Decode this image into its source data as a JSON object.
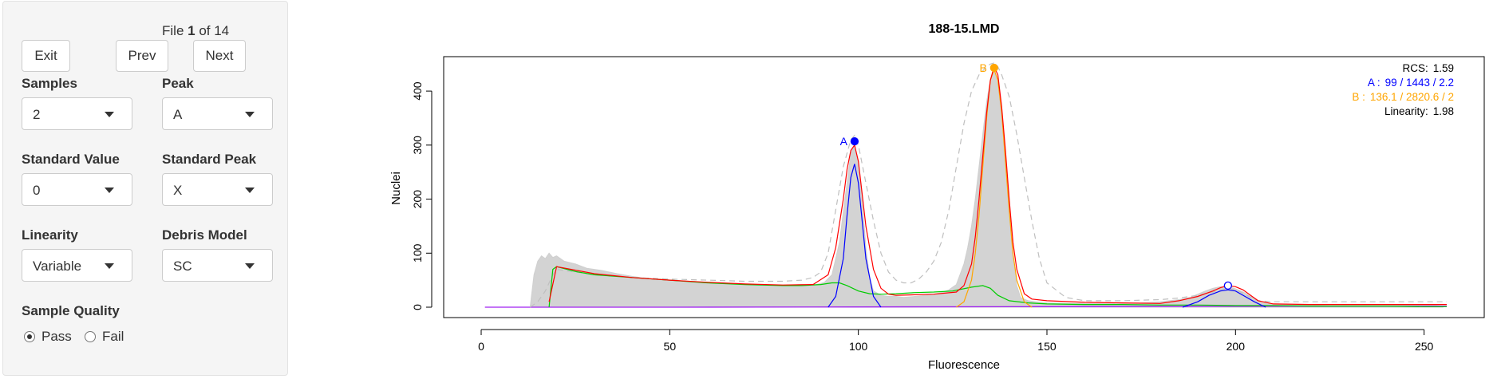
{
  "sidebar": {
    "file_counter": {
      "prefix": "File ",
      "current": "1",
      "suffix": " of 14"
    },
    "buttons": {
      "exit": "Exit",
      "prev": "Prev",
      "next": "Next"
    },
    "samples": {
      "label": "Samples",
      "value": "2"
    },
    "peak": {
      "label": "Peak",
      "value": "A"
    },
    "standard_value": {
      "label": "Standard Value",
      "value": "0"
    },
    "standard_peak": {
      "label": "Standard Peak",
      "value": "X"
    },
    "linearity": {
      "label": "Linearity",
      "value": "Variable"
    },
    "debris_model": {
      "label": "Debris Model",
      "value": "SC"
    },
    "sample_quality": {
      "label": "Sample Quality",
      "options": [
        "Pass",
        "Fail"
      ],
      "selected": "Pass"
    }
  },
  "chart_data": {
    "type": "area",
    "title": "188-15.LMD",
    "xlabel": "Fluorescence",
    "ylabel": "Nuclei",
    "xlim": [
      0,
      256
    ],
    "ylim": [
      0,
      440
    ],
    "xticks": [
      0,
      50,
      100,
      150,
      200,
      250
    ],
    "yticks": [
      0,
      100,
      200,
      300,
      400
    ],
    "grid": false,
    "peak_markers": [
      {
        "label": "A",
        "x": 99,
        "y": 307,
        "color": "#0000ff",
        "filled": true
      },
      {
        "label": "B",
        "x": 136,
        "y": 443,
        "color": "#ffa500",
        "filled": true
      },
      {
        "label": "",
        "x": 198,
        "y": 40,
        "color": "#0000ff",
        "filled": false
      }
    ],
    "stats": {
      "rcs": {
        "label": "RCS:",
        "value": "1.59"
      },
      "a": {
        "label": "A :",
        "value": "99 / 1443 / 2.2",
        "color": "#0000ff"
      },
      "b": {
        "label": "B :",
        "value": "136.1 / 2820.6 / 2",
        "color": "#ffa500"
      },
      "linearity": {
        "label": "Linearity:",
        "value": "1.98"
      }
    },
    "histogram": {
      "x": [
        13,
        14,
        15,
        16,
        17,
        18,
        19,
        20,
        22,
        25,
        28,
        32,
        36,
        40,
        45,
        50,
        55,
        60,
        65,
        70,
        75,
        80,
        85,
        88,
        91,
        93,
        95,
        97,
        98,
        99,
        100,
        101,
        102,
        103,
        104,
        106,
        108,
        110,
        112,
        115,
        118,
        120,
        122,
        124,
        126,
        128,
        129,
        130,
        131,
        132,
        133,
        134,
        135,
        136,
        137,
        138,
        139,
        140,
        141,
        142,
        143,
        145,
        147,
        150,
        155,
        160,
        165,
        170,
        175,
        180,
        185,
        188,
        190,
        192,
        194,
        196,
        198,
        200,
        202,
        204,
        206,
        210,
        215,
        220,
        225,
        230,
        235,
        240,
        245,
        250,
        253,
        255
      ],
      "y": [
        0,
        60,
        85,
        95,
        90,
        100,
        92,
        95,
        85,
        80,
        72,
        68,
        62,
        57,
        52,
        50,
        48,
        46,
        44,
        42,
        41,
        40,
        42,
        40,
        46,
        60,
        120,
        230,
        285,
        300,
        270,
        200,
        110,
        55,
        30,
        22,
        20,
        20,
        18,
        20,
        22,
        24,
        27,
        32,
        42,
        80,
        110,
        150,
        200,
        260,
        320,
        380,
        420,
        440,
        410,
        350,
        260,
        170,
        90,
        40,
        18,
        12,
        10,
        8,
        7,
        7,
        7,
        7,
        8,
        10,
        14,
        18,
        24,
        30,
        35,
        38,
        38,
        34,
        28,
        20,
        12,
        6,
        4,
        4,
        3,
        3,
        3,
        3,
        3,
        3,
        3,
        2
      ]
    },
    "fit_total": {
      "color": "#bfbfbf",
      "x": [
        13,
        15,
        17,
        19,
        20,
        25,
        30,
        40,
        50,
        60,
        70,
        80,
        85,
        88,
        90,
        92,
        94,
        96,
        98,
        99,
        100,
        102,
        104,
        106,
        108,
        110,
        112,
        114,
        116,
        118,
        120,
        122,
        124,
        126,
        128,
        130,
        132,
        134,
        135,
        136,
        137,
        138,
        140,
        142,
        144,
        146,
        148,
        150,
        155,
        160,
        170,
        180,
        185,
        190,
        194,
        196,
        198,
        200,
        202,
        204,
        206,
        210,
        220,
        230,
        240,
        250,
        256
      ],
      "y": [
        0,
        10,
        30,
        60,
        70,
        65,
        60,
        55,
        52,
        50,
        48,
        48,
        50,
        55,
        65,
        100,
        180,
        260,
        310,
        318,
        300,
        230,
        160,
        100,
        65,
        50,
        45,
        45,
        52,
        65,
        85,
        120,
        180,
        260,
        340,
        400,
        430,
        445,
        450,
        452,
        445,
        430,
        390,
        320,
        240,
        160,
        90,
        45,
        18,
        12,
        12,
        14,
        17,
        22,
        28,
        32,
        34,
        32,
        26,
        18,
        12,
        10,
        10,
        10,
        10,
        10,
        10
      ]
    },
    "fit_model": {
      "color": "#ff0000",
      "x": [
        18,
        20,
        30,
        40,
        50,
        60,
        70,
        80,
        88,
        92,
        94,
        96,
        97,
        98,
        99,
        100,
        101,
        102,
        104,
        106,
        108,
        110,
        120,
        126,
        128,
        130,
        131,
        132,
        133,
        134,
        135,
        136,
        137,
        138,
        139,
        140,
        141,
        142,
        144,
        146,
        150,
        160,
        170,
        180,
        185,
        190,
        194,
        196,
        198,
        200,
        202,
        204,
        206,
        210,
        220,
        230,
        240,
        256
      ],
      "y": [
        10,
        75,
        62,
        55,
        50,
        46,
        43,
        41,
        42,
        60,
        110,
        200,
        255,
        290,
        300,
        270,
        210,
        150,
        70,
        35,
        24,
        22,
        24,
        28,
        40,
        80,
        130,
        200,
        280,
        360,
        420,
        445,
        430,
        370,
        290,
        200,
        120,
        70,
        25,
        15,
        12,
        9,
        8,
        7,
        12,
        20,
        30,
        36,
        40,
        38,
        32,
        22,
        12,
        6,
        5,
        5,
        5,
        5
      ]
    },
    "fit_a": {
      "color": "#0000ff",
      "x": [
        92,
        94,
        96,
        97,
        98,
        99,
        100,
        101,
        102,
        104,
        106
      ],
      "y": [
        0,
        20,
        90,
        170,
        240,
        265,
        230,
        160,
        90,
        20,
        0
      ],
      "x2": [
        186,
        190,
        193,
        196,
        198,
        200,
        202,
        205,
        208
      ],
      "y2": [
        0,
        10,
        22,
        30,
        32,
        30,
        22,
        10,
        0
      ]
    },
    "fit_b": {
      "color": "#ffa500",
      "x": [
        126,
        128,
        130,
        131,
        132,
        133,
        134,
        135,
        136,
        137,
        138,
        139,
        140,
        141,
        142,
        144,
        146
      ],
      "y": [
        0,
        10,
        50,
        100,
        170,
        260,
        350,
        420,
        440,
        420,
        360,
        270,
        180,
        100,
        50,
        10,
        0
      ]
    },
    "debris": {
      "color": "#00cc00",
      "x": [
        18,
        19,
        20,
        25,
        30,
        40,
        50,
        60,
        70,
        80,
        85,
        90,
        93,
        95,
        97,
        100,
        103,
        106,
        110,
        115,
        120,
        125,
        130,
        133,
        135,
        137,
        140,
        145,
        150,
        160,
        170,
        180,
        190,
        200,
        210,
        220,
        230,
        240,
        250,
        256
      ],
      "y": [
        0,
        70,
        75,
        66,
        60,
        55,
        50,
        45,
        42,
        40,
        40,
        42,
        45,
        45,
        40,
        30,
        25,
        24,
        25,
        27,
        28,
        30,
        37,
        40,
        35,
        22,
        12,
        8,
        6,
        5,
        5,
        4,
        4,
        3,
        3,
        2,
        2,
        2,
        1,
        1
      ]
    },
    "aggregates": {
      "color": "#a020f0",
      "x": [
        1,
        50,
        100,
        150,
        200,
        250,
        256
      ],
      "y": [
        0,
        0,
        0.5,
        1,
        1.5,
        2,
        2
      ]
    }
  }
}
